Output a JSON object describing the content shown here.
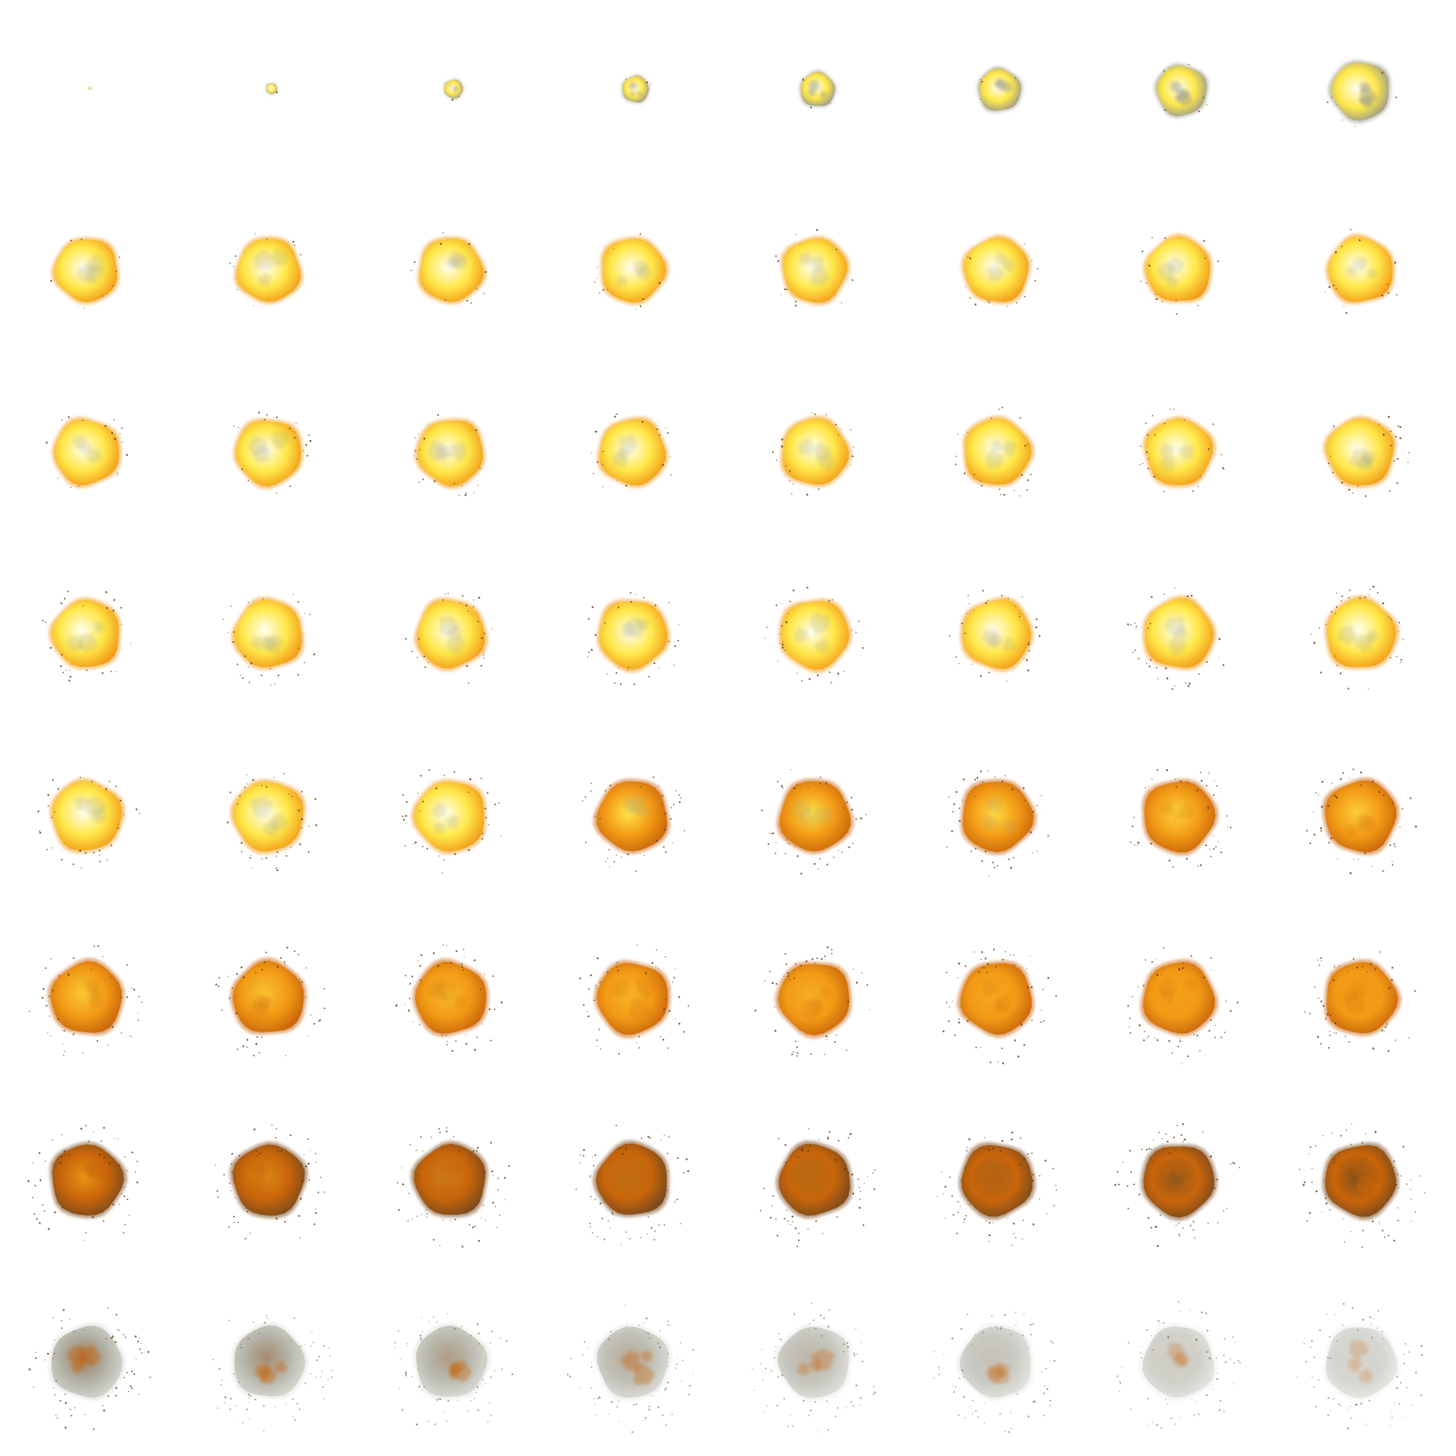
{
  "sprite_sheet": {
    "columns": 8,
    "rows": 8,
    "frame_count": 64,
    "background": "#ffffff",
    "palette": {
      "white_hot": "#fffef0",
      "yellow": "#ffe84a",
      "orange": "#f29a16",
      "deep_orange": "#c9650a",
      "brown": "#7a4a1c",
      "smoke": "#9a9a8c",
      "spark": "#5a3a14"
    }
  }
}
